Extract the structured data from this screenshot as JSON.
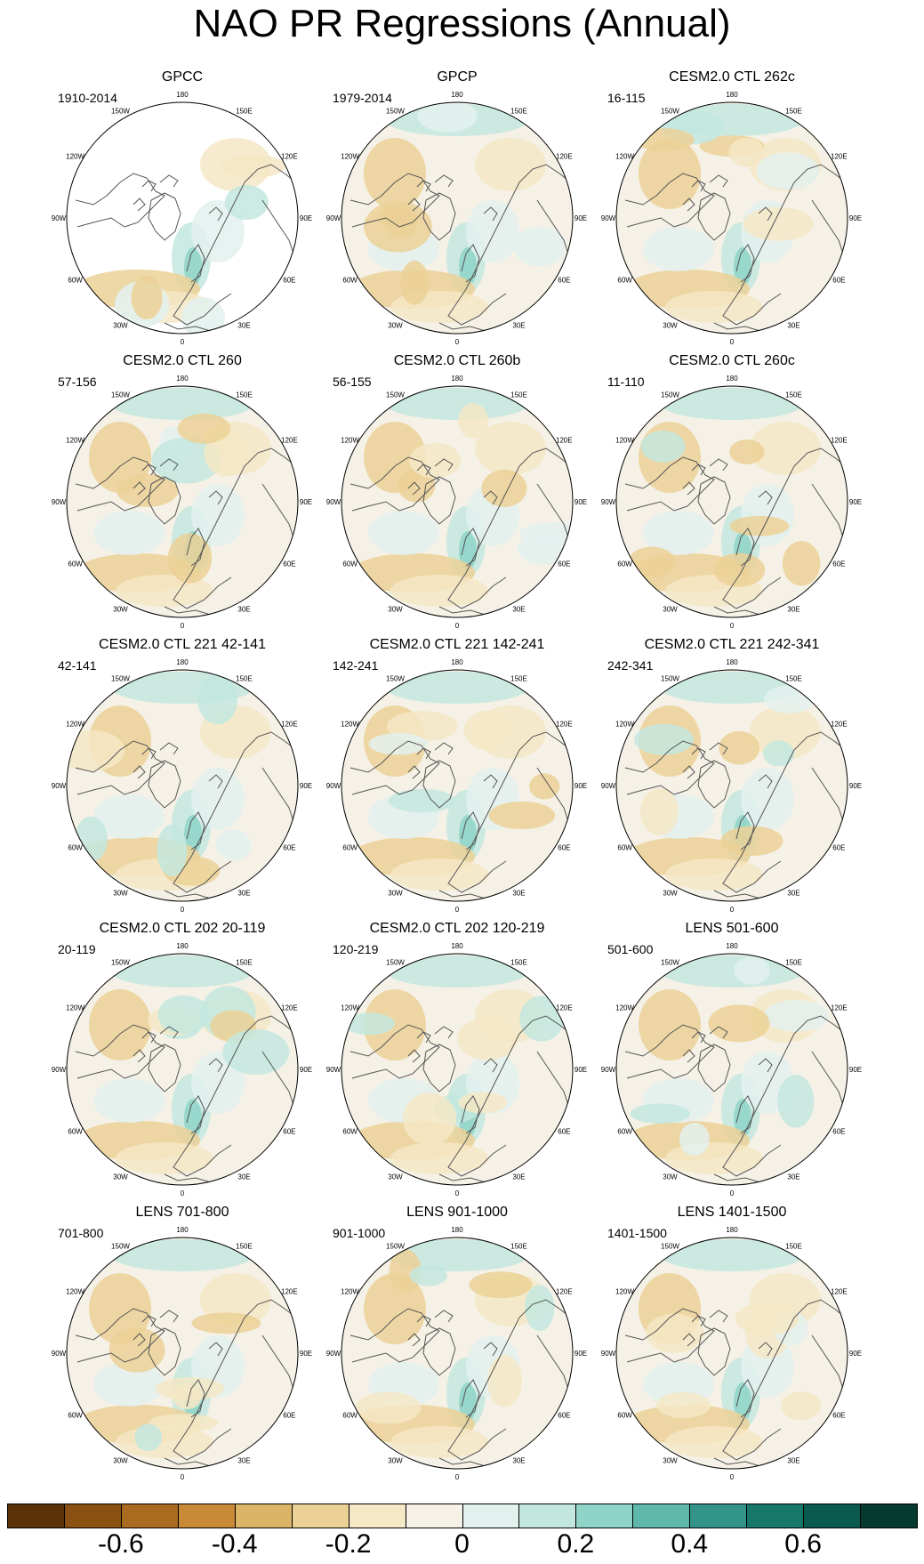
{
  "title": "NAO PR Regressions (Annual)",
  "lon_labels": [
    "180",
    "150E",
    "120E",
    "90E",
    "60E",
    "30E",
    "0",
    "30W",
    "60W",
    "90W",
    "120W",
    "150W"
  ],
  "panels": [
    {
      "title": "GPCC",
      "period": "1910-2014"
    },
    {
      "title": "GPCP",
      "period": "1979-2014"
    },
    {
      "title": "CESM2.0 CTL 262c",
      "period": "16-115"
    },
    {
      "title": "CESM2.0 CTL 260",
      "period": "57-156"
    },
    {
      "title": "CESM2.0 CTL 260b",
      "period": "56-155"
    },
    {
      "title": "CESM2.0 CTL 260c",
      "period": "11-110"
    },
    {
      "title": "CESM2.0 CTL 221 42-141",
      "period": "42-141"
    },
    {
      "title": "CESM2.0 CTL 221 142-241",
      "period": "142-241"
    },
    {
      "title": "CESM2.0 CTL 221 242-341",
      "period": "242-341"
    },
    {
      "title": "CESM2.0 CTL 202 20-119",
      "period": "20-119"
    },
    {
      "title": "CESM2.0 CTL 202 120-219",
      "period": "120-219"
    },
    {
      "title": "LENS 501-600",
      "period": "501-600"
    },
    {
      "title": "LENS 701-800",
      "period": "701-800"
    },
    {
      "title": "LENS 901-1000",
      "period": "901-1000"
    },
    {
      "title": "LENS 1401-1500",
      "period": "1401-1500"
    }
  ],
  "colorbar": {
    "colors": [
      "#5c3309",
      "#8a5112",
      "#a86b1f",
      "#c88a37",
      "#dcb468",
      "#ebd196",
      "#f5e8c6",
      "#f5f1e6",
      "#e3f1ee",
      "#c3e7df",
      "#8fd4c7",
      "#5fb9aa",
      "#33958a",
      "#17776b",
      "#0a5a50",
      "#053a30"
    ],
    "labels": [
      "-0.6",
      "-0.4",
      "-0.2",
      "0",
      "0.2",
      "0.4",
      "0.6"
    ]
  }
}
